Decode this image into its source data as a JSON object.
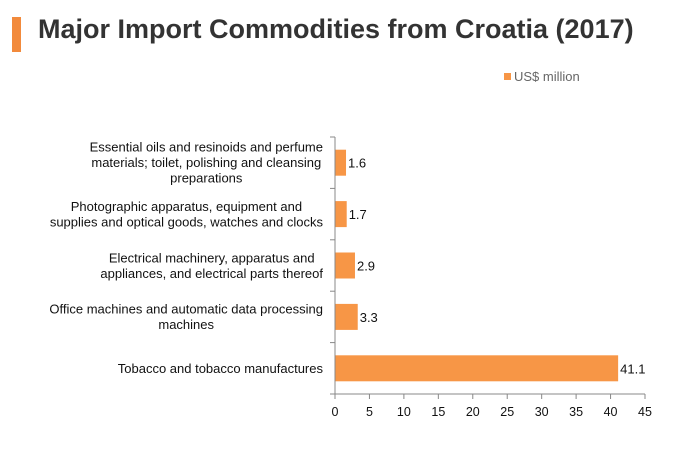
{
  "header": {
    "title": "Major Import Commodities from Croatia (2017)"
  },
  "colors": {
    "bar": "#f79646",
    "accent": "#f28a3c",
    "axis": "#888888"
  },
  "chart_data": {
    "type": "bar",
    "orientation": "horizontal",
    "title": "Major Import Commodities from Croatia (2017)",
    "categories": [
      [
        "Essential oils and resinoids and perfume",
        "materials; toilet, polishing and cleansing",
        "preparations"
      ],
      [
        "Photographic apparatus, equipment and",
        "supplies and optical goods, watches and clocks"
      ],
      [
        "Electrical machinery, apparatus and",
        "appliances, and electrical parts thereof"
      ],
      [
        "Office machines and automatic data processing",
        "machines"
      ],
      [
        "Tobacco and tobacco manufactures"
      ]
    ],
    "series": [
      {
        "name": "US$ million",
        "values": [
          1.6,
          1.7,
          2.9,
          3.3,
          41.1
        ]
      }
    ],
    "xlim": [
      0,
      45
    ],
    "xticks": [
      0,
      5,
      10,
      15,
      20,
      25,
      30,
      35,
      40,
      45
    ],
    "legend": "top-right",
    "grid": false
  }
}
